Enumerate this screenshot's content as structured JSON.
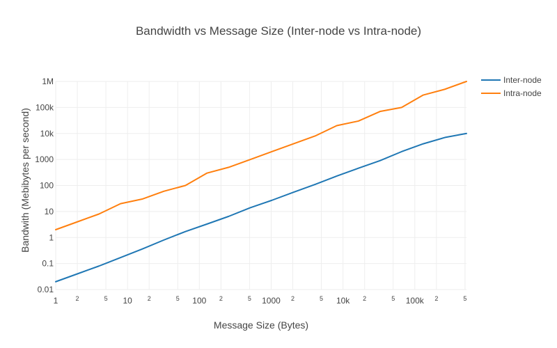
{
  "chart_data": {
    "type": "line",
    "title": "Bandwidth vs Message Size (Inter-node vs Intra-node)",
    "xlabel": "Message Size (Bytes)",
    "ylabel": "Bandwith (Mebibytes per second)",
    "x_scale": "log",
    "y_scale": "log",
    "xlim": [
      1,
      524288
    ],
    "ylim": [
      0.01,
      1000000
    ],
    "grid": true,
    "legend_position": "top-right",
    "x_ticks": [
      {
        "value": 1,
        "label": "1",
        "major": true
      },
      {
        "value": 2,
        "label": "2",
        "major": false
      },
      {
        "value": 5,
        "label": "5",
        "major": false
      },
      {
        "value": 10,
        "label": "10",
        "major": true
      },
      {
        "value": 20,
        "label": "2",
        "major": false
      },
      {
        "value": 50,
        "label": "5",
        "major": false
      },
      {
        "value": 100,
        "label": "100",
        "major": true
      },
      {
        "value": 200,
        "label": "2",
        "major": false
      },
      {
        "value": 500,
        "label": "5",
        "major": false
      },
      {
        "value": 1000,
        "label": "1000",
        "major": true
      },
      {
        "value": 2000,
        "label": "2",
        "major": false
      },
      {
        "value": 5000,
        "label": "5",
        "major": false
      },
      {
        "value": 10000,
        "label": "10k",
        "major": true
      },
      {
        "value": 20000,
        "label": "2",
        "major": false
      },
      {
        "value": 50000,
        "label": "5",
        "major": false
      },
      {
        "value": 100000,
        "label": "100k",
        "major": true
      },
      {
        "value": 200000,
        "label": "2",
        "major": false
      },
      {
        "value": 500000,
        "label": "5",
        "major": false
      }
    ],
    "y_ticks": [
      {
        "value": 0.01,
        "label": "0.01"
      },
      {
        "value": 0.1,
        "label": "0.1"
      },
      {
        "value": 1,
        "label": "1"
      },
      {
        "value": 10,
        "label": "10"
      },
      {
        "value": 100,
        "label": "100"
      },
      {
        "value": 1000,
        "label": "1000"
      },
      {
        "value": 10000,
        "label": "10k"
      },
      {
        "value": 100000,
        "label": "100k"
      },
      {
        "value": 1000000,
        "label": "1M"
      }
    ],
    "x": [
      1,
      2,
      4,
      8,
      16,
      32,
      64,
      128,
      256,
      512,
      1024,
      2048,
      4096,
      8192,
      16384,
      32768,
      65536,
      131072,
      262144,
      524288
    ],
    "series": [
      {
        "name": "Inter-node",
        "color": "#1f77b4",
        "values": [
          0.02,
          0.04,
          0.08,
          0.17,
          0.36,
          0.8,
          1.7,
          3.3,
          6.5,
          14,
          27,
          55,
          110,
          230,
          460,
          900,
          2000,
          4000,
          7000,
          10000
        ]
      },
      {
        "name": "Intra-node",
        "color": "#ff7f0e",
        "values": [
          2,
          4,
          8,
          20,
          30,
          60,
          100,
          300,
          500,
          1000,
          2000,
          4000,
          8000,
          20000,
          30000,
          70000,
          100000,
          300000,
          500000,
          1000000
        ]
      }
    ]
  }
}
